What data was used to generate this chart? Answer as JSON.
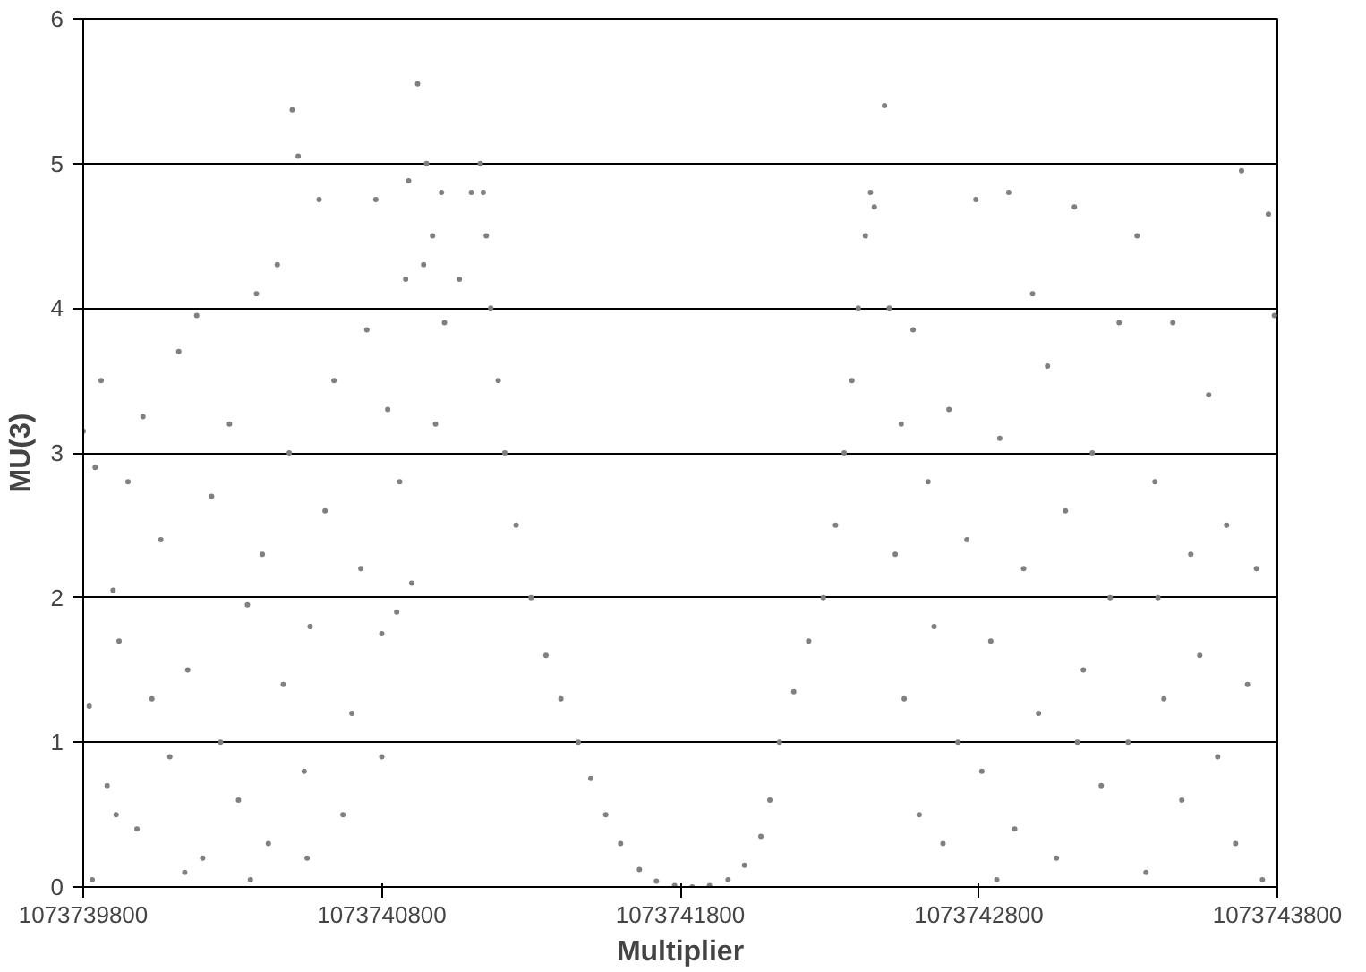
{
  "chart_data": {
    "type": "scatter",
    "xlabel": "Multiplier",
    "ylabel": "MU(3)",
    "xlim": [
      1073739800,
      1073743800
    ],
    "ylim": [
      0,
      6
    ],
    "xticks": [
      1073739800,
      1073740800,
      1073741800,
      1073742800,
      1073743800
    ],
    "yticks": [
      0,
      1,
      2,
      3,
      4,
      5,
      6
    ],
    "grid": "y",
    "marker": "circle",
    "series": [
      {
        "color": "#808080",
        "x": [
          1073739800,
          1073739820,
          1073739840,
          1073739860,
          1073739880,
          1073739900,
          1073739920,
          1073739950,
          1073739980,
          1073740000,
          1073740030,
          1073740060,
          1073740090,
          1073740120,
          1073740150,
          1073740180,
          1073740200,
          1073740230,
          1073740260,
          1073740290,
          1073740320,
          1073740350,
          1073740380,
          1073740400,
          1073740420,
          1073740450,
          1073740470,
          1073740490,
          1073740500,
          1073740520,
          1073740540,
          1073740560,
          1073740590,
          1073740610,
          1073740640,
          1073740670,
          1073740700,
          1073740730,
          1073740750,
          1073740780,
          1073740800,
          1073740820,
          1073740850,
          1073740860,
          1073740880,
          1073740890,
          1073740900,
          1073740920,
          1073740940,
          1073740950,
          1073740970,
          1073740980,
          1073741000,
          1073741010,
          1073739830,
          1073739910,
          1073740140,
          1073740360,
          1073740550,
          1073740800,
          1073741060,
          1073741100,
          1073741130,
          1073741150,
          1073741140,
          1073741165,
          1073741190,
          1073741212,
          1073741250,
          1073741300,
          1073741350,
          1073741400,
          1073741458,
          1073741500,
          1073741550,
          1073741600,
          1073741663,
          1073741720,
          1073741781,
          1073741840,
          1073741898,
          1073741960,
          1073742015,
          1073742070,
          1073742100,
          1073742132,
          1073742180,
          1073742230,
          1073742279,
          1073742320,
          1073742349,
          1073742375,
          1073742396,
          1073742420,
          1073742437,
          1073742450,
          1073742484,
          1073742500,
          1073742520,
          1073742550,
          1073742580,
          1073742600,
          1073742630,
          1073742650,
          1073742680,
          1073742700,
          1073742730,
          1073742760,
          1073742790,
          1073742810,
          1073742840,
          1073742870,
          1073742900,
          1073742920,
          1073742950,
          1073742980,
          1073743000,
          1073743030,
          1073743060,
          1073743090,
          1073743120,
          1073743150,
          1073743180,
          1073743210,
          1073743240,
          1073743270,
          1073743300,
          1073743330,
          1073743360,
          1073743390,
          1073743420,
          1073743450,
          1073743480,
          1073743510,
          1073743540,
          1073743570,
          1073743600,
          1073743630,
          1073743660,
          1073743680,
          1073743700,
          1073743730,
          1073743750,
          1073743770,
          1073743790,
          1073742540,
          1073742860,
          1073743130,
          1073743400
        ],
        "values": [
          3.15,
          1.25,
          2.9,
          3.5,
          0.7,
          2.05,
          1.7,
          2.8,
          0.4,
          3.25,
          1.3,
          2.4,
          0.9,
          3.7,
          1.5,
          3.95,
          0.2,
          2.7,
          1.0,
          3.2,
          0.6,
          1.95,
          4.1,
          2.3,
          0.3,
          4.3,
          1.4,
          3.0,
          5.37,
          5.05,
          0.8,
          1.8,
          4.75,
          2.6,
          3.5,
          0.5,
          1.2,
          2.2,
          3.85,
          4.75,
          0.9,
          3.3,
          1.9,
          2.8,
          4.2,
          4.88,
          2.1,
          5.55,
          4.3,
          5.0,
          4.5,
          3.2,
          4.8,
          3.9,
          0.05,
          0.5,
          0.1,
          0.05,
          0.2,
          1.75,
          4.2,
          4.8,
          5.0,
          4.5,
          4.8,
          4.0,
          3.5,
          3.0,
          2.5,
          2.0,
          1.6,
          1.3,
          1.0,
          0.75,
          0.5,
          0.3,
          0.12,
          0.04,
          0.01,
          0.0,
          0.01,
          0.05,
          0.15,
          0.35,
          0.6,
          1.0,
          1.35,
          1.7,
          2.0,
          2.5,
          3.0,
          3.5,
          4.0,
          4.5,
          4.8,
          4.7,
          5.4,
          4.0,
          2.3,
          1.3,
          3.85,
          0.5,
          2.8,
          1.8,
          0.3,
          3.3,
          1.0,
          2.4,
          4.75,
          0.8,
          1.7,
          3.1,
          4.8,
          0.4,
          2.2,
          4.1,
          1.2,
          3.6,
          0.2,
          2.6,
          4.7,
          1.5,
          3.0,
          0.7,
          2.0,
          3.9,
          1.0,
          4.5,
          0.1,
          2.8,
          1.3,
          3.9,
          0.6,
          2.3,
          1.6,
          3.4,
          0.9,
          2.5,
          0.3,
          4.95,
          1.4,
          2.2,
          0.05,
          4.65,
          3.95,
          3.2,
          0.05,
          1.0,
          2.0
        ]
      }
    ]
  }
}
